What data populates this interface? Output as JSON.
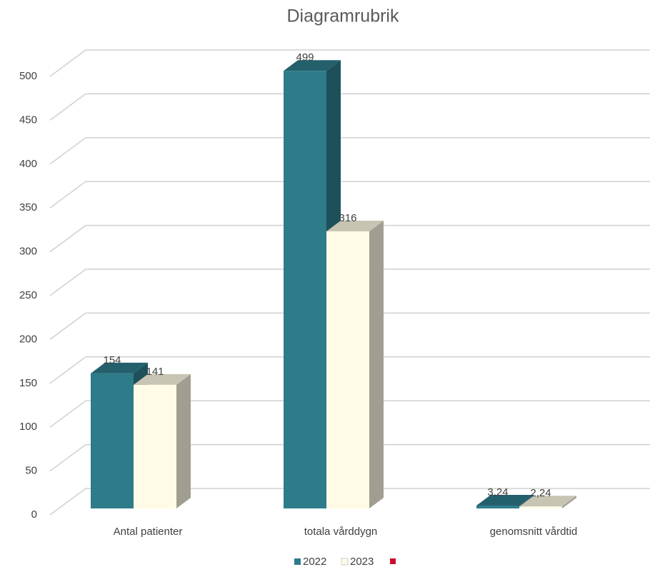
{
  "chart_data": {
    "type": "bar3d",
    "title": "Diagramrubrik",
    "categories": [
      "Antal patienter",
      "totala vårddygn",
      "genomsnitt vårdtid"
    ],
    "series": [
      {
        "name": "2022",
        "color": "#2e7b8a",
        "values": [
          154,
          499,
          3.24
        ],
        "value_labels": [
          "154",
          "499",
          "3,24"
        ]
      },
      {
        "name": "2023",
        "color": "#fffbe6",
        "values": [
          141,
          316,
          2.24
        ],
        "value_labels": [
          "141",
          "316",
          "2,24"
        ]
      }
    ],
    "ylim": [
      0,
      500
    ],
    "yticks": [
      0,
      50,
      100,
      150,
      200,
      250,
      300,
      350,
      400,
      450,
      500
    ],
    "grid": true
  }
}
